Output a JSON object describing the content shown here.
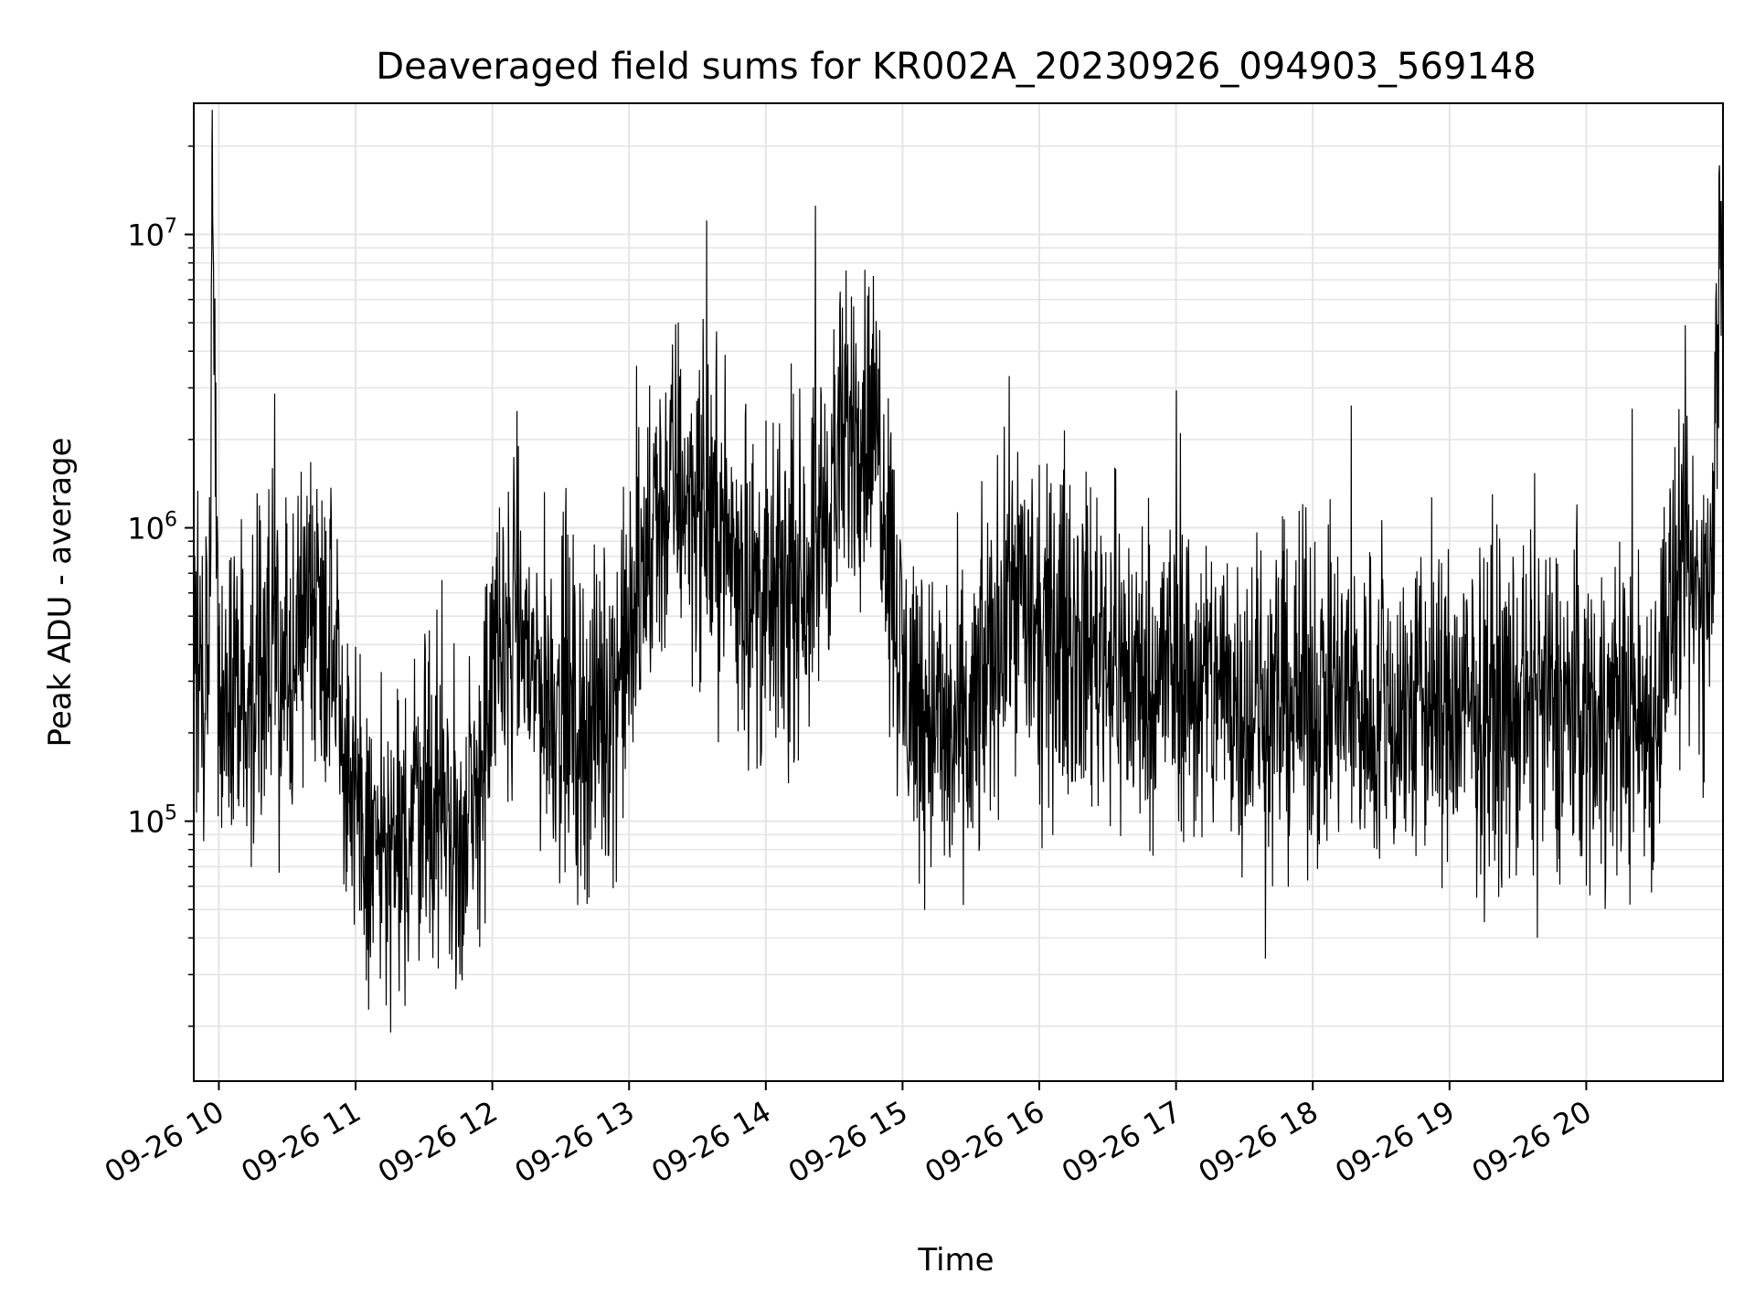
{
  "chart_data": {
    "type": "line",
    "title": "Deaveraged field sums for KR002A_20230926_094903_569148",
    "xlabel": "Time",
    "ylabel": "Peak ADU - average",
    "y_scale": "log",
    "ylim": [
      13000,
      28000000
    ],
    "xlim": [
      "2023-09-26 09:49",
      "2023-09-26 21:00"
    ],
    "grid": true,
    "line_color": "#000000",
    "grid_color": "#e5e5e5",
    "x_ticks": [
      "09-26 10",
      "09-26 11",
      "09-26 12",
      "09-26 13",
      "09-26 14",
      "09-26 15",
      "09-26 16",
      "09-26 17",
      "09-26 18",
      "09-26 19",
      "09-26 20"
    ],
    "y_ticks": [
      {
        "base": "10",
        "exp": "5",
        "value": 100000
      },
      {
        "base": "10",
        "exp": "6",
        "value": 1000000
      },
      {
        "base": "10",
        "exp": "7",
        "value": 10000000
      }
    ],
    "series": [
      {
        "x": [
          "2023-09-26 09:49",
          "2023-09-26 09:56",
          "2023-09-26 09:57",
          "2023-09-26 10:00",
          "2023-09-26 10:10",
          "2023-09-26 10:20",
          "2023-09-26 10:30",
          "2023-09-26 10:40",
          "2023-09-26 10:50",
          "2023-09-26 11:00",
          "2023-09-26 11:10",
          "2023-09-26 11:20",
          "2023-09-26 11:30",
          "2023-09-26 11:40",
          "2023-09-26 11:50",
          "2023-09-26 12:00",
          "2023-09-26 12:10",
          "2023-09-26 12:20",
          "2023-09-26 12:30",
          "2023-09-26 12:40",
          "2023-09-26 12:50",
          "2023-09-26 13:00",
          "2023-09-26 13:10",
          "2023-09-26 13:20",
          "2023-09-26 13:30",
          "2023-09-26 13:40",
          "2023-09-26 13:50",
          "2023-09-26 14:00",
          "2023-09-26 14:10",
          "2023-09-26 14:20",
          "2023-09-26 14:30",
          "2023-09-26 14:40",
          "2023-09-26 14:50",
          "2023-09-26 15:00",
          "2023-09-26 15:10",
          "2023-09-26 15:20",
          "2023-09-26 15:30",
          "2023-09-26 15:40",
          "2023-09-26 15:50",
          "2023-09-26 16:00",
          "2023-09-26 16:10",
          "2023-09-26 16:20",
          "2023-09-26 16:30",
          "2023-09-26 16:40",
          "2023-09-26 16:50",
          "2023-09-26 17:00",
          "2023-09-26 17:10",
          "2023-09-26 17:20",
          "2023-09-26 17:30",
          "2023-09-26 17:40",
          "2023-09-26 17:50",
          "2023-09-26 18:00",
          "2023-09-26 18:10",
          "2023-09-26 18:20",
          "2023-09-26 18:30",
          "2023-09-26 18:40",
          "2023-09-26 18:50",
          "2023-09-26 19:00",
          "2023-09-26 19:10",
          "2023-09-26 19:20",
          "2023-09-26 19:30",
          "2023-09-26 19:40",
          "2023-09-26 19:50",
          "2023-09-26 20:00",
          "2023-09-26 20:10",
          "2023-09-26 20:20",
          "2023-09-26 20:30",
          "2023-09-26 20:35",
          "2023-09-26 20:45",
          "2023-09-26 20:55",
          "2023-09-26 20:59"
        ],
        "y": [
          300000,
          400000,
          20000000,
          300000,
          250000,
          350000,
          300000,
          600000,
          500000,
          90000,
          80000,
          70000,
          150000,
          90000,
          80000,
          300000,
          500000,
          300000,
          250000,
          200000,
          250000,
          400000,
          900000,
          1500000,
          1200000,
          1000000,
          700000,
          500000,
          600000,
          800000,
          1500000,
          2500000,
          2000000,
          300000,
          250000,
          180000,
          200000,
          400000,
          700000,
          350000,
          450000,
          400000,
          400000,
          300000,
          300000,
          350000,
          280000,
          300000,
          260000,
          250000,
          260000,
          270000,
          260000,
          250000,
          230000,
          240000,
          250000,
          240000,
          230000,
          240000,
          230000,
          240000,
          250000,
          230000,
          240000,
          230000,
          220000,
          500000,
          600000,
          600000,
          13000000
        ]
      }
    ]
  }
}
